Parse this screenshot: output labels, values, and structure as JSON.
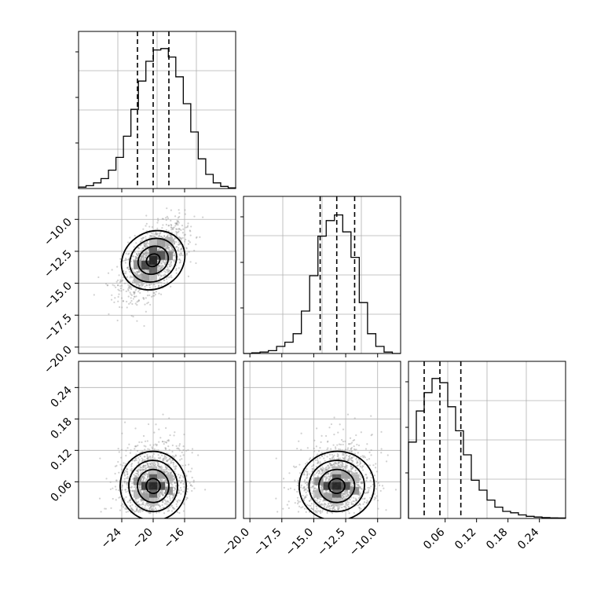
{
  "chart_data": {
    "type": "corner",
    "parameters": [
      {
        "index": 0,
        "range": [
          -29.5,
          -9.5
        ],
        "ticks": [
          -24,
          -20,
          -16
        ]
      },
      {
        "index": 1,
        "range": [
          -20.5,
          -8.2
        ],
        "ticks": [
          -20.0,
          -17.5,
          -15.0,
          -12.5,
          -10.0
        ]
      },
      {
        "index": 2,
        "range": [
          -0.01,
          0.29
        ],
        "ticks": [
          0.06,
          0.12,
          0.18,
          0.24
        ]
      }
    ],
    "tick_labels": {
      "p0": [
        "−24",
        "−20",
        "−16"
      ],
      "p1": [
        "−20.0",
        "−17.5",
        "−15.0",
        "−12.5",
        "−10.0"
      ],
      "p2": [
        "0.06",
        "0.12",
        "0.18",
        "0.24"
      ]
    },
    "quantiles": [
      [
        -22.0,
        -20.0,
        -18.0
      ],
      [
        -14.5,
        -13.2,
        -11.8
      ],
      [
        0.02,
        0.05,
        0.09
      ]
    ],
    "histograms": [
      {
        "edges_range": [
          -29.5,
          -9.5
        ],
        "counts": [
          0.01,
          0.02,
          0.04,
          0.07,
          0.13,
          0.22,
          0.37,
          0.56,
          0.76,
          0.9,
          0.98,
          0.99,
          0.93,
          0.79,
          0.6,
          0.4,
          0.21,
          0.1,
          0.04,
          0.015,
          0.005
        ]
      },
      {
        "edges_range": [
          -20.5,
          -8.2
        ],
        "counts": [
          0.0,
          0.005,
          0.01,
          0.02,
          0.05,
          0.08,
          0.14,
          0.3,
          0.55,
          0.83,
          0.94,
          0.98,
          0.86,
          0.68,
          0.36,
          0.14,
          0.05,
          0.01,
          0.0
        ]
      },
      {
        "edges_range": [
          -0.01,
          0.29
        ],
        "counts": [
          0.54,
          0.76,
          0.89,
          0.99,
          0.96,
          0.79,
          0.62,
          0.45,
          0.27,
          0.2,
          0.13,
          0.08,
          0.05,
          0.04,
          0.025,
          0.015,
          0.01,
          0.006,
          0.004,
          0.003
        ]
      }
    ],
    "pairs": [
      {
        "x_param": 0,
        "y_param": 1,
        "mean": [
          -20.0,
          -13.2
        ],
        "sd": [
          2.0,
          1.4
        ],
        "corr": 0.55
      },
      {
        "x_param": 0,
        "y_param": 2,
        "mean": [
          -20.0,
          0.052
        ],
        "sd": [
          2.0,
          0.03
        ],
        "corr": 0.1
      },
      {
        "x_param": 1,
        "y_param": 2,
        "mean": [
          -13.2,
          0.052
        ],
        "sd": [
          1.4,
          0.03
        ],
        "corr": 0.1
      }
    ],
    "grid": true,
    "x_tick_rotation_deg": 45,
    "y_tick_rotation_deg": 45
  }
}
